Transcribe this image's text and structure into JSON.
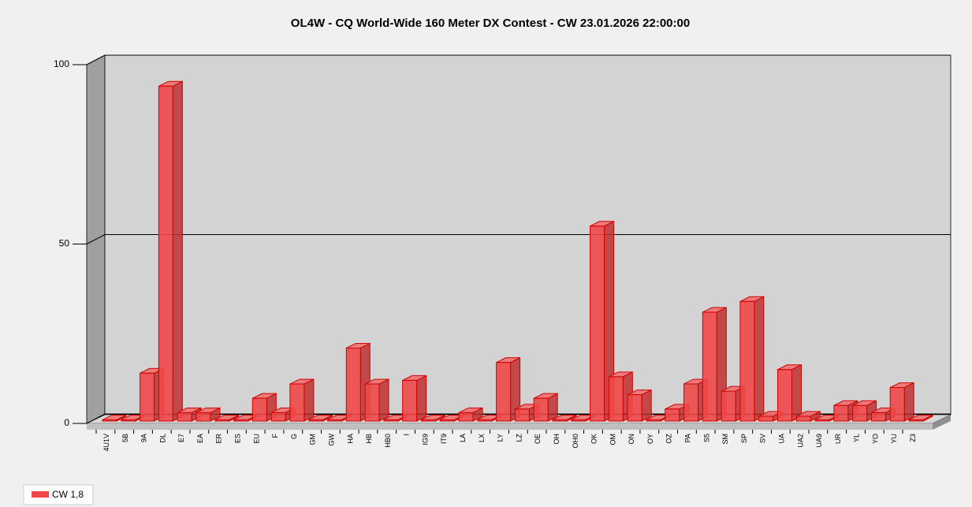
{
  "chart_data": {
    "type": "bar3d",
    "title": "OL4W - CQ World-Wide 160 Meter DX Contest - CW 23.01.2026 22:00:00",
    "categories": [
      "4U1V",
      "5B",
      "9A",
      "DL",
      "E7",
      "EA",
      "ER",
      "ES",
      "EU",
      "F",
      "G",
      "GM",
      "GW",
      "HA",
      "HB",
      "HB0",
      "I",
      "IG9",
      "IT9",
      "LA",
      "LX",
      "LY",
      "LZ",
      "OE",
      "OH",
      "OH0",
      "OK",
      "OM",
      "ON",
      "OY",
      "OZ",
      "PA",
      "S5",
      "SM",
      "SP",
      "SV",
      "UA",
      "UA2",
      "UA9",
      "UR",
      "YL",
      "YO",
      "YU",
      "Z3"
    ],
    "series": [
      {
        "name": "CW 1,8",
        "color": "#f04848",
        "values": [
          1,
          1,
          14,
          94,
          3,
          3,
          1,
          1,
          7,
          3,
          11,
          1,
          1,
          21,
          11,
          1,
          12,
          1,
          1,
          3,
          1,
          17,
          4,
          7,
          1,
          1,
          55,
          13,
          8,
          1,
          4,
          11,
          31,
          9,
          34,
          2,
          15,
          2,
          1,
          5,
          5,
          3,
          10,
          1
        ]
      }
    ],
    "ylim": [
      0,
      100
    ],
    "yticks": [
      0,
      50,
      100
    ],
    "grid": true,
    "legend": "bottom-left"
  }
}
